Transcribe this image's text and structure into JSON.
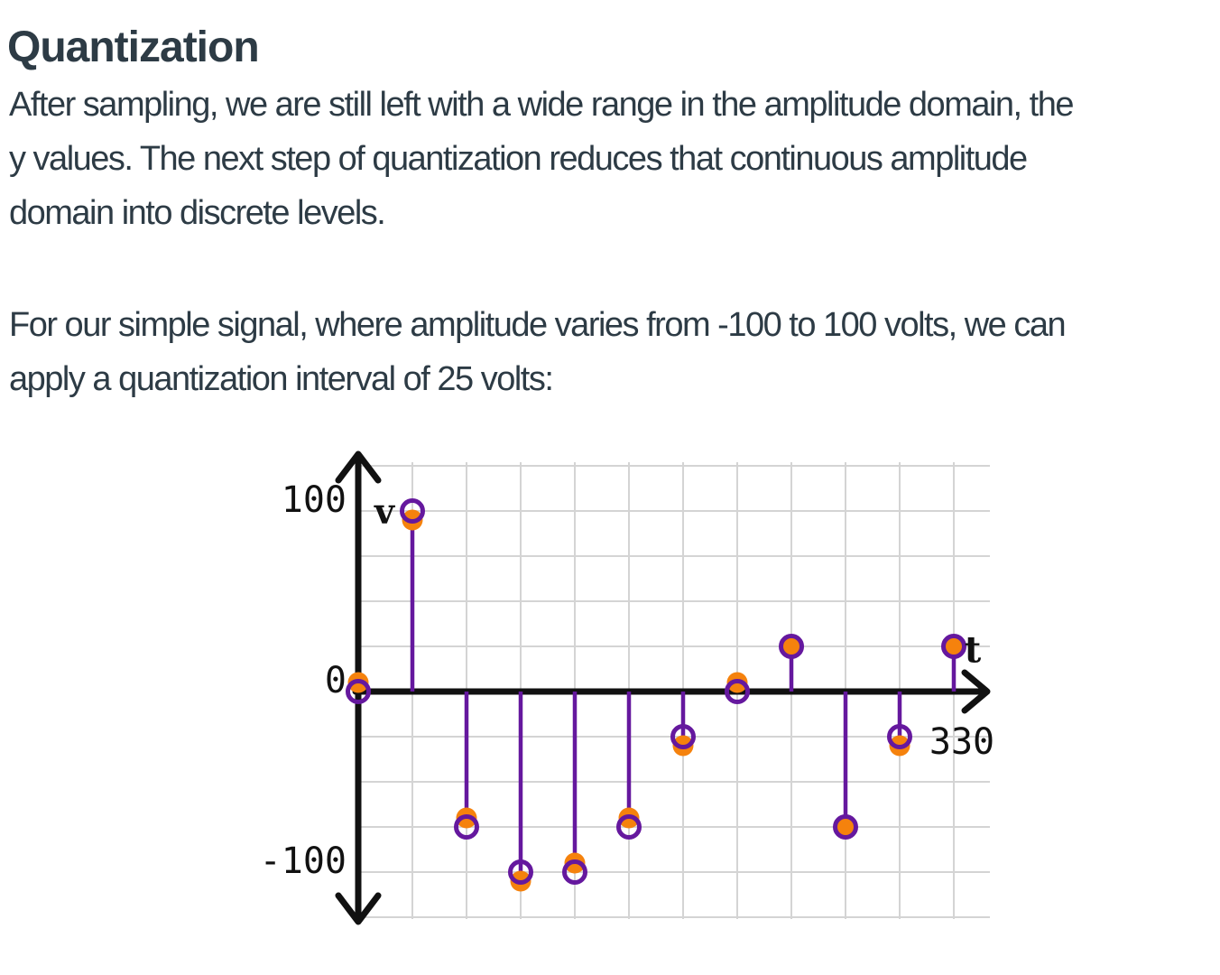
{
  "page": {
    "heading": "Quantization",
    "paragraph1_lines": [
      "After sampling, we are still left with a wide range in the amplitude domain, the",
      "y values. The next step of quantization reduces that continuous amplitude",
      "domain into discrete levels."
    ],
    "paragraph2_lines": [
      "For our simple signal, where amplitude varies from -100 to 100 volts, we can",
      "apply a quantization interval of 25 volts:"
    ],
    "text_color": "#2D3B45"
  },
  "chart_data": {
    "type": "stem",
    "description": "Sampled signal: orange filled dots are actual sample amplitudes, purple open circles on stems are the values quantized to 25-volt levels",
    "x_axis_label": "t",
    "y_axis_label": "v",
    "x_end_tick_label": "330",
    "y_ticks": [
      {
        "label": "100",
        "value": 100
      },
      {
        "label": "0",
        "value": 0
      },
      {
        "label": "-100",
        "value": -100
      }
    ],
    "x": [
      0,
      30,
      60,
      90,
      120,
      150,
      180,
      210,
      240,
      270,
      300,
      330
    ],
    "series": [
      {
        "name": "actual-samples",
        "marker": "filled-dot",
        "color": "#F5820D",
        "values": [
          5,
          95,
          -70,
          -105,
          -95,
          -70,
          -30,
          5,
          25,
          -75,
          -30,
          25
        ]
      },
      {
        "name": "quantized-samples",
        "marker": "open-circle",
        "color": "#65189E",
        "values": [
          0,
          100,
          -75,
          -100,
          -100,
          -75,
          -25,
          0,
          25,
          -75,
          -25,
          25
        ]
      }
    ],
    "quantization_interval_volts": 25,
    "ylim": [
      -125,
      125
    ],
    "grid": true,
    "grid_color": "#D4D4D4",
    "axis_color": "#111111",
    "legend": "none"
  }
}
